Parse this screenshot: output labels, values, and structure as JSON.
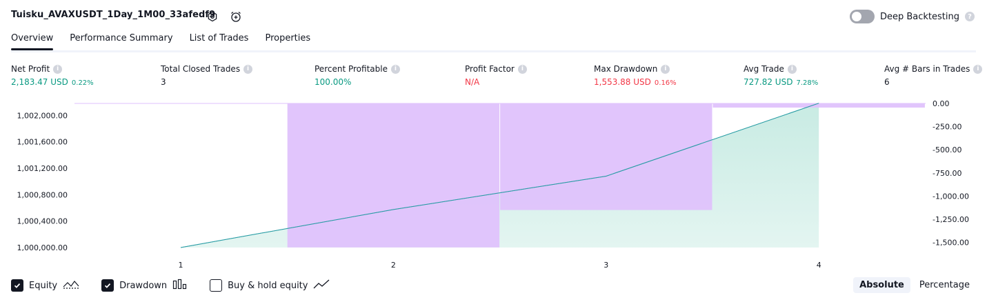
{
  "header": {
    "strategy_title": "Tuisku_AVAXUSDT_1Day_1M00_33afedf9",
    "icons": [
      "settings-icon",
      "alarm-add-icon"
    ],
    "deep_backtesting_label": "Deep Backtesting",
    "deep_backtesting_enabled": false
  },
  "tabs": [
    {
      "label": "Overview",
      "active": true
    },
    {
      "label": "Performance Summary",
      "active": false
    },
    {
      "label": "List of Trades",
      "active": false
    },
    {
      "label": "Properties",
      "active": false
    }
  ],
  "metrics": [
    {
      "label": "Net Profit",
      "value": "2,183.47 USD",
      "pct": "0.22%",
      "color": "#089981"
    },
    {
      "label": "Total Closed Trades",
      "value": "3",
      "pct": "",
      "color": "#131722"
    },
    {
      "label": "Percent Profitable",
      "value": "100.00%",
      "pct": "",
      "color": "#089981"
    },
    {
      "label": "Profit Factor",
      "value": "N/A",
      "pct": "",
      "color": "#f23645"
    },
    {
      "label": "Max Drawdown",
      "value": "1,553.88 USD",
      "pct": "0.16%",
      "color": "#f23645"
    },
    {
      "label": "Avg Trade",
      "value": "727.82 USD",
      "pct": "7.28%",
      "color": "#089981"
    },
    {
      "label": "Avg # Bars in Trades",
      "value": "6",
      "pct": "",
      "color": "#131722"
    }
  ],
  "chart_data": {
    "type": "area",
    "x": [
      1,
      2,
      3,
      4
    ],
    "x_tick_labels": [
      "1",
      "2",
      "3",
      "4"
    ],
    "left_ticks": [
      "1,002,000.00",
      "1,001,600.00",
      "1,001,200.00",
      "1,000,800.00",
      "1,000,400.00",
      "1,000,000.00"
    ],
    "left_tick_values": [
      1002000,
      1001600,
      1001200,
      1000800,
      1000400,
      1000000
    ],
    "right_ticks": [
      "0.00",
      "-250.00",
      "-500.00",
      "-750.00",
      "-1,000.00",
      "-1,250.00",
      "-1,500.00"
    ],
    "right_tick_values": [
      0,
      -250,
      -500,
      -750,
      -1000,
      -1250,
      -1500
    ],
    "left_ylim": [
      1000000,
      1002180
    ],
    "right_ylim": [
      -1555,
      0
    ],
    "equity": [
      1000000,
      1000575,
      1001080,
      1002183.47
    ],
    "drawdown": [
      {
        "x_from": 0.5,
        "x_to": 1.5,
        "value": 0
      },
      {
        "x_from": 1.5,
        "x_to": 2.5,
        "value": -1553.88
      },
      {
        "x_from": 2.5,
        "x_to": 3.5,
        "value": -1150
      },
      {
        "x_from": 3.5,
        "x_to": 4.5,
        "value": -45
      }
    ],
    "colors": {
      "equity": "#22ab94",
      "equity_fill": "#c8ebe3",
      "drawdown": "#dfc2fc"
    }
  },
  "legend": [
    {
      "label": "Equity",
      "checked": true,
      "icon": "equity-line-icon"
    },
    {
      "label": "Drawdown",
      "checked": true,
      "icon": "drawdown-bars-icon"
    },
    {
      "label": "Buy & hold equity",
      "checked": false,
      "icon": "buy-hold-line-icon"
    }
  ],
  "modes": [
    {
      "label": "Absolute",
      "active": true
    },
    {
      "label": "Percentage",
      "active": false
    }
  ]
}
